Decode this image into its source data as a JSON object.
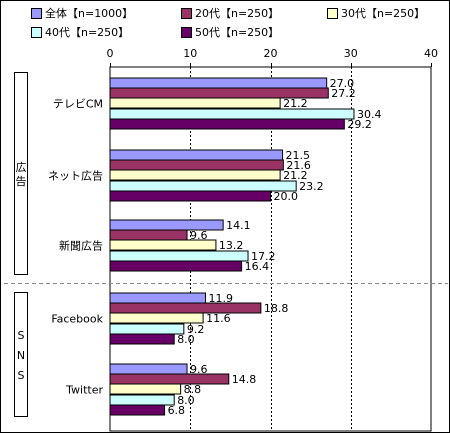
{
  "chart_data": {
    "type": "bar",
    "orientation": "horizontal",
    "xlim": [
      0,
      40
    ],
    "xticks": [
      "0",
      "10",
      "20",
      "30",
      "40"
    ],
    "groups": [
      {
        "label": "広告",
        "categories": [
          "テレビCM",
          "ネット広告",
          "新聞広告"
        ]
      },
      {
        "label": "SNS",
        "categories": [
          "Facebook",
          "Twitter"
        ]
      }
    ],
    "categories": [
      "テレビCM",
      "ネット広告",
      "新聞広告",
      "Facebook",
      "Twitter"
    ],
    "series": [
      {
        "name": "全体【n=1000】",
        "color": "#9999ff",
        "values": [
          27.0,
          21.5,
          14.1,
          11.9,
          9.6
        ],
        "labels": [
          "27.0",
          "21.5",
          "14.1",
          "11.9",
          "9.6"
        ]
      },
      {
        "name": "20代【n=250】",
        "color": "#993366",
        "values": [
          27.2,
          21.6,
          9.6,
          18.8,
          14.8
        ],
        "labels": [
          "27.2",
          "21.6",
          "9.6",
          "18.8",
          "14.8"
        ]
      },
      {
        "name": "30代【n=250】",
        "color": "#ffffcc",
        "values": [
          21.2,
          21.2,
          13.2,
          11.6,
          8.8
        ],
        "labels": [
          "21.2",
          "21.2",
          "13.2",
          "11.6",
          "8.8"
        ]
      },
      {
        "name": "40代【n=250】",
        "color": "#ccffff",
        "values": [
          30.4,
          23.2,
          17.2,
          9.2,
          8.0
        ],
        "labels": [
          "30.4",
          "23.2",
          "17.2",
          "9.2",
          "8.0"
        ]
      },
      {
        "name": "50代【n=250】",
        "color": "#660066",
        "values": [
          29.2,
          20.0,
          16.4,
          8.0,
          6.8
        ],
        "labels": [
          "29.2",
          "20.0",
          "16.4",
          "8.0",
          "6.8"
        ]
      }
    ],
    "grid": true,
    "legend_position": "top"
  }
}
